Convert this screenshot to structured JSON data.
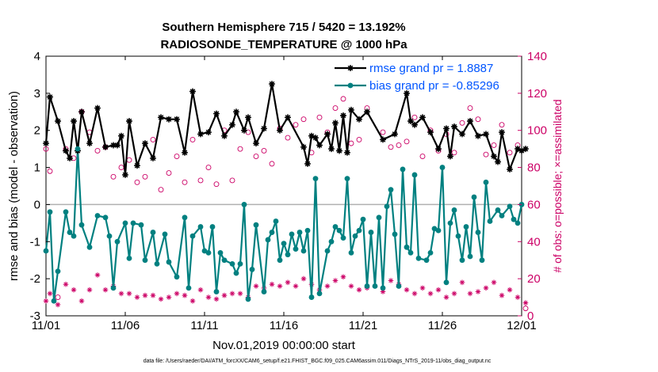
{
  "chart_data": {
    "type": "line",
    "title": "Southern Hemisphere 715 / 5420 = 13.192%",
    "subtitle": "RADIOSONDE_TEMPERATURE @ 1000 hPa",
    "xlabel": "Nov.01,2019 00:00:00 start",
    "ylabel": "rmse and bias (model - observation)",
    "ylabel_right": "# of obs: o=possible; ×=assimilated",
    "footnote": "data file: /Users/raeder/DAI/ATM_forcXX/CAM6_setup/f.e21.FHIST_BGC.f09_025.CAM6assim.011/Diags_NTrS_2019-11/obs_diag_output.nc",
    "x_tick_labels": [
      "11/01",
      "11/06",
      "11/11",
      "11/16",
      "11/21",
      "11/26",
      "12/01"
    ],
    "x_ticks": [
      0,
      5,
      10,
      15,
      20,
      25,
      30
    ],
    "xlim": [
      0,
      30
    ],
    "ylim": [
      -3,
      4
    ],
    "y_ticks": [
      -3,
      -2,
      -1,
      0,
      1,
      2,
      3,
      4
    ],
    "y_tick_labels": [
      "-3",
      "-2",
      "-1",
      "0",
      "1",
      "2",
      "3",
      "4"
    ],
    "ylim_right": [
      0,
      140
    ],
    "y2_ticks": [
      0,
      20,
      40,
      60,
      80,
      100,
      120,
      140
    ],
    "y2_tick_labels": [
      "0",
      "20",
      "40",
      "60",
      "80",
      "100",
      "120",
      "140"
    ],
    "zero_line": 0,
    "legend": [
      {
        "label": "rmse grand pr = 1.8887",
        "color": "#000000",
        "marker": "star"
      },
      {
        "label": "bias grand pr = -0.85296",
        "color": "#008080",
        "marker": "circle"
      }
    ],
    "series": [
      {
        "name": "rmse",
        "color": "#000000",
        "points": [
          [
            0.0,
            1.65
          ],
          [
            0.25,
            2.9
          ],
          [
            0.75,
            2.25
          ],
          [
            1.25,
            1.45
          ],
          [
            1.5,
            1.25
          ],
          [
            1.75,
            2.25
          ],
          [
            2.0,
            1.45
          ],
          [
            2.25,
            2.5
          ],
          [
            2.75,
            1.65
          ],
          [
            3.25,
            2.6
          ],
          [
            3.75,
            1.55
          ],
          [
            4.25,
            1.6
          ],
          [
            4.5,
            1.6
          ],
          [
            4.75,
            1.85
          ],
          [
            5.0,
            0.8
          ],
          [
            5.25,
            2.25
          ],
          [
            5.75,
            1.05
          ],
          [
            6.25,
            1.65
          ],
          [
            6.75,
            1.25
          ],
          [
            7.25,
            2.35
          ],
          [
            7.75,
            2.3
          ],
          [
            8.25,
            2.3
          ],
          [
            8.75,
            1.4
          ],
          [
            9.25,
            3.05
          ],
          [
            9.75,
            1.9
          ],
          [
            10.25,
            1.95
          ],
          [
            10.75,
            2.45
          ],
          [
            11.25,
            1.85
          ],
          [
            11.75,
            2.15
          ],
          [
            12.0,
            2.5
          ],
          [
            12.5,
            2.0
          ],
          [
            12.75,
            2.35
          ],
          [
            13.25,
            1.65
          ],
          [
            13.75,
            2.05
          ],
          [
            14.25,
            3.25
          ],
          [
            14.75,
            2.0
          ],
          [
            15.25,
            2.35
          ],
          [
            16.25,
            1.55
          ],
          [
            16.5,
            1.1
          ],
          [
            16.75,
            1.85
          ],
          [
            17.0,
            1.8
          ],
          [
            17.25,
            1.6
          ],
          [
            17.75,
            1.9
          ],
          [
            18.0,
            1.5
          ],
          [
            18.25,
            2.2
          ],
          [
            18.5,
            1.45
          ],
          [
            18.75,
            2.4
          ],
          [
            19.0,
            1.4
          ],
          [
            19.25,
            2.55
          ],
          [
            19.75,
            2.3
          ],
          [
            20.25,
            2.5
          ],
          [
            21.25,
            1.75
          ],
          [
            22.0,
            1.9
          ],
          [
            22.75,
            3.0
          ],
          [
            23.0,
            2.25
          ],
          [
            23.25,
            2.15
          ],
          [
            23.75,
            2.35
          ],
          [
            24.25,
            1.95
          ],
          [
            24.75,
            1.5
          ],
          [
            25.25,
            2.05
          ],
          [
            25.5,
            1.3
          ],
          [
            25.75,
            2.1
          ],
          [
            26.25,
            1.9
          ],
          [
            26.75,
            2.25
          ],
          [
            27.25,
            1.85
          ],
          [
            27.75,
            1.9
          ],
          [
            28.25,
            1.3
          ],
          [
            28.5,
            1.15
          ],
          [
            28.75,
            1.95
          ],
          [
            29.25,
            0.95
          ],
          [
            29.75,
            1.5
          ],
          [
            30.0,
            1.45
          ],
          [
            30.25,
            1.5
          ]
        ]
      },
      {
        "name": "bias",
        "color": "#008080",
        "points": [
          [
            0.0,
            -1.25
          ],
          [
            0.25,
            -0.2
          ],
          [
            0.5,
            -2.6
          ],
          [
            0.75,
            -1.8
          ],
          [
            1.25,
            -0.2
          ],
          [
            1.5,
            -0.75
          ],
          [
            1.75,
            -0.85
          ],
          [
            2.0,
            1.5
          ],
          [
            2.25,
            -0.55
          ],
          [
            2.75,
            -1.15
          ],
          [
            3.25,
            -0.3
          ],
          [
            3.75,
            -0.35
          ],
          [
            4.0,
            -0.85
          ],
          [
            4.25,
            -2.25
          ],
          [
            4.5,
            -1.0
          ],
          [
            5.0,
            -0.5
          ],
          [
            5.25,
            -1.45
          ],
          [
            5.5,
            -0.5
          ],
          [
            6.0,
            -0.55
          ],
          [
            6.25,
            -1.5
          ],
          [
            6.75,
            -0.75
          ],
          [
            7.0,
            -1.6
          ],
          [
            7.5,
            -0.8
          ],
          [
            7.75,
            -1.55
          ],
          [
            8.25,
            -1.95
          ],
          [
            8.75,
            -0.35
          ],
          [
            9.0,
            -2.25
          ],
          [
            9.25,
            -0.85
          ],
          [
            9.75,
            -0.6
          ],
          [
            10.0,
            -1.25
          ],
          [
            10.25,
            -1.3
          ],
          [
            10.5,
            -0.6
          ],
          [
            10.75,
            -2.35
          ],
          [
            11.0,
            -1.3
          ],
          [
            11.25,
            -1.5
          ],
          [
            11.75,
            -1.6
          ],
          [
            12.0,
            -1.85
          ],
          [
            12.25,
            -1.6
          ],
          [
            12.5,
            0.0
          ],
          [
            12.75,
            -2.55
          ],
          [
            13.0,
            -1.75
          ],
          [
            13.25,
            -0.55
          ],
          [
            13.75,
            -2.35
          ],
          [
            14.0,
            -0.95
          ],
          [
            14.25,
            -0.75
          ],
          [
            14.5,
            -0.45
          ],
          [
            14.75,
            -1.5
          ],
          [
            15.0,
            -1.05
          ],
          [
            15.25,
            -1.35
          ],
          [
            15.5,
            -0.8
          ],
          [
            15.75,
            -1.2
          ],
          [
            16.0,
            -0.75
          ],
          [
            16.25,
            -1.25
          ],
          [
            16.5,
            -0.7
          ],
          [
            16.75,
            -2.5
          ],
          [
            17.0,
            0.7
          ],
          [
            17.25,
            -2.4
          ],
          [
            17.75,
            -1.25
          ],
          [
            18.0,
            -1.0
          ],
          [
            18.25,
            -0.6
          ],
          [
            18.5,
            -0.7
          ],
          [
            18.75,
            -0.9
          ],
          [
            19.0,
            0.7
          ],
          [
            19.25,
            -1.3
          ],
          [
            19.5,
            -0.85
          ],
          [
            19.75,
            -0.7
          ],
          [
            20.0,
            -0.4
          ],
          [
            20.25,
            -2.2
          ],
          [
            20.5,
            -0.75
          ],
          [
            20.75,
            -2.2
          ],
          [
            21.0,
            -0.35
          ],
          [
            21.25,
            -2.25
          ],
          [
            21.5,
            -0.05
          ],
          [
            21.75,
            0.4
          ],
          [
            22.0,
            -0.8
          ],
          [
            22.25,
            -2.2
          ],
          [
            22.5,
            0.95
          ],
          [
            22.75,
            -1.15
          ],
          [
            23.0,
            -1.3
          ],
          [
            23.25,
            0.8
          ],
          [
            23.5,
            -1.45
          ],
          [
            24.0,
            -1.5
          ],
          [
            24.25,
            -1.3
          ],
          [
            24.5,
            -0.65
          ],
          [
            24.75,
            -0.7
          ],
          [
            25.0,
            1.0
          ],
          [
            25.25,
            -2.1
          ],
          [
            25.5,
            -0.5
          ],
          [
            25.75,
            -0.15
          ],
          [
            26.0,
            -0.85
          ],
          [
            26.25,
            -1.5
          ],
          [
            26.5,
            -0.6
          ],
          [
            26.75,
            -1.4
          ],
          [
            27.0,
            0.2
          ],
          [
            27.25,
            -0.75
          ],
          [
            27.5,
            -1.5
          ],
          [
            27.75,
            0.6
          ],
          [
            28.0,
            -0.45
          ],
          [
            28.5,
            -0.15
          ],
          [
            28.75,
            -0.3
          ],
          [
            29.25,
            -0.05
          ],
          [
            29.5,
            -0.4
          ],
          [
            29.75,
            -0.5
          ],
          [
            30.0,
            0.0
          ]
        ]
      }
    ],
    "possible": {
      "name": "# obs possible",
      "color": "#cc0066",
      "marker": "o",
      "points": [
        [
          0.0,
          90
        ],
        [
          0.25,
          78
        ],
        [
          0.75,
          10
        ],
        [
          1.25,
          90
        ],
        [
          1.75,
          85
        ],
        [
          2.25,
          110
        ],
        [
          2.75,
          99
        ],
        [
          3.25,
          89
        ],
        [
          3.75,
          91
        ],
        [
          4.25,
          75
        ],
        [
          4.75,
          80
        ],
        [
          5.25,
          84
        ],
        [
          5.75,
          72
        ],
        [
          6.25,
          75
        ],
        [
          6.75,
          95
        ],
        [
          7.25,
          68
        ],
        [
          7.75,
          77
        ],
        [
          8.25,
          86
        ],
        [
          8.75,
          72
        ],
        [
          9.25,
          95
        ],
        [
          9.75,
          73
        ],
        [
          10.25,
          80
        ],
        [
          10.75,
          71
        ],
        [
          11.25,
          100
        ],
        [
          11.75,
          73
        ],
        [
          12.25,
          90
        ],
        [
          12.75,
          99
        ],
        [
          13.25,
          86
        ],
        [
          13.75,
          89
        ],
        [
          14.25,
          82
        ],
        [
          14.75,
          101
        ],
        [
          15.25,
          96
        ],
        [
          15.75,
          103
        ],
        [
          16.25,
          106
        ],
        [
          16.75,
          88
        ],
        [
          17.25,
          107
        ],
        [
          17.75,
          99
        ],
        [
          18.25,
          112
        ],
        [
          18.75,
          117
        ],
        [
          19.25,
          93
        ],
        [
          19.75,
          95
        ],
        [
          20.25,
          112
        ],
        [
          21.25,
          99
        ],
        [
          21.75,
          91
        ],
        [
          22.25,
          92
        ],
        [
          22.75,
          94
        ],
        [
          23.25,
          107
        ],
        [
          23.75,
          86
        ],
        [
          24.25,
          100
        ],
        [
          24.75,
          89
        ],
        [
          25.25,
          98
        ],
        [
          25.75,
          88
        ],
        [
          26.25,
          104
        ],
        [
          26.75,
          112
        ],
        [
          27.25,
          106
        ],
        [
          27.75,
          87
        ],
        [
          28.25,
          92
        ],
        [
          28.75,
          103
        ],
        [
          29.25,
          88
        ],
        [
          29.75,
          92
        ],
        [
          30.25,
          4
        ]
      ]
    },
    "assimilated": {
      "name": "# obs assimilated",
      "color": "#cc0066",
      "marker": "star",
      "points": [
        [
          0.0,
          8
        ],
        [
          0.25,
          12
        ],
        [
          0.75,
          6
        ],
        [
          1.25,
          17
        ],
        [
          1.75,
          14
        ],
        [
          2.25,
          8
        ],
        [
          2.75,
          14
        ],
        [
          3.25,
          22
        ],
        [
          3.75,
          14
        ],
        [
          4.25,
          16
        ],
        [
          4.75,
          12
        ],
        [
          5.25,
          12
        ],
        [
          5.75,
          10
        ],
        [
          6.25,
          11
        ],
        [
          6.75,
          11
        ],
        [
          7.25,
          9
        ],
        [
          7.75,
          10
        ],
        [
          8.25,
          12
        ],
        [
          8.75,
          11
        ],
        [
          9.25,
          8
        ],
        [
          9.75,
          14
        ],
        [
          10.25,
          10
        ],
        [
          10.75,
          9
        ],
        [
          11.25,
          11
        ],
        [
          11.75,
          12
        ],
        [
          12.25,
          12
        ],
        [
          12.75,
          10
        ],
        [
          13.25,
          16
        ],
        [
          13.75,
          15
        ],
        [
          14.25,
          17
        ],
        [
          14.75,
          16
        ],
        [
          15.25,
          18
        ],
        [
          15.75,
          16
        ],
        [
          16.25,
          20
        ],
        [
          16.75,
          17
        ],
        [
          17.25,
          14
        ],
        [
          17.75,
          16
        ],
        [
          18.25,
          19
        ],
        [
          18.75,
          21
        ],
        [
          19.25,
          16
        ],
        [
          19.75,
          14
        ],
        [
          20.25,
          15
        ],
        [
          21.25,
          13
        ],
        [
          21.75,
          19
        ],
        [
          22.25,
          17
        ],
        [
          22.75,
          14
        ],
        [
          23.25,
          12
        ],
        [
          23.75,
          15
        ],
        [
          24.25,
          12
        ],
        [
          24.75,
          14
        ],
        [
          25.25,
          10
        ],
        [
          25.75,
          12
        ],
        [
          26.25,
          18
        ],
        [
          26.75,
          12
        ],
        [
          27.25,
          13
        ],
        [
          27.75,
          15
        ],
        [
          28.25,
          18
        ],
        [
          28.75,
          11
        ],
        [
          29.25,
          14
        ],
        [
          29.75,
          10
        ],
        [
          30.25,
          7
        ]
      ]
    }
  }
}
